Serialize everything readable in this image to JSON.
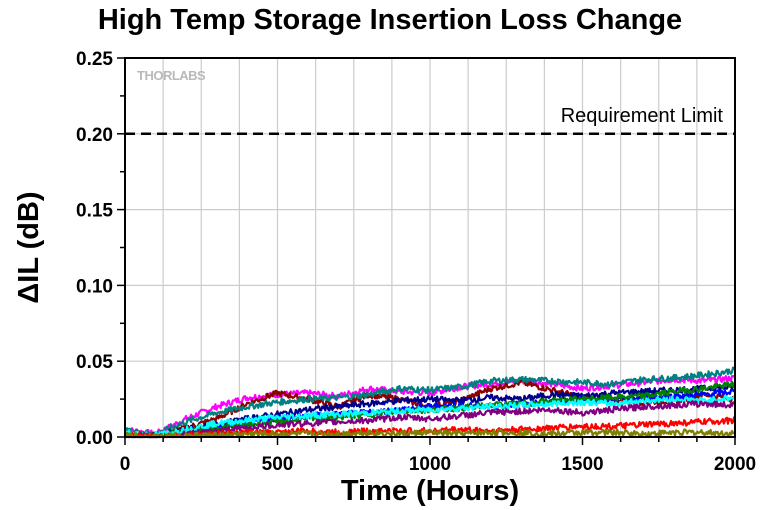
{
  "chart_data": {
    "type": "line",
    "title": "High Temp Storage Insertion Loss Change",
    "xlabel": "Time (Hours)",
    "ylabel": "ΔIL (dB)",
    "xlim": [
      0,
      2000
    ],
    "ylim": [
      0,
      0.25
    ],
    "xticks": [
      "0",
      "500",
      "1000",
      "1500",
      "2000"
    ],
    "yticks": [
      "0.00",
      "0.05",
      "0.10",
      "0.15",
      "0.20",
      "0.25"
    ],
    "grid": true,
    "legend": "none",
    "watermark": "THORLABS",
    "annotations": [
      {
        "text": "Requirement Limit",
        "type": "hline",
        "y": 0.2,
        "style": "dashed",
        "color": "#000000"
      }
    ],
    "x": [
      0,
      100,
      200,
      300,
      400,
      500,
      600,
      700,
      800,
      900,
      1000,
      1100,
      1200,
      1300,
      1400,
      1500,
      1600,
      1700,
      1800,
      1900,
      2000
    ],
    "series": [
      {
        "color": "#ff00ff",
        "values": [
          0.005,
          0.002,
          0.012,
          0.02,
          0.026,
          0.028,
          0.029,
          0.027,
          0.032,
          0.03,
          0.029,
          0.033,
          0.035,
          0.037,
          0.035,
          0.032,
          0.034,
          0.036,
          0.038,
          0.037,
          0.039
        ]
      },
      {
        "color": "#8b0000",
        "values": [
          0.003,
          0.001,
          0.006,
          0.012,
          0.022,
          0.029,
          0.025,
          0.02,
          0.028,
          0.025,
          0.02,
          0.024,
          0.032,
          0.036,
          0.031,
          0.026,
          0.025,
          0.023,
          0.024,
          0.028,
          0.025
        ]
      },
      {
        "color": "#008080",
        "values": [
          0.004,
          0.002,
          0.01,
          0.016,
          0.02,
          0.023,
          0.025,
          0.026,
          0.028,
          0.032,
          0.031,
          0.033,
          0.037,
          0.038,
          0.037,
          0.036,
          0.035,
          0.038,
          0.039,
          0.041,
          0.044
        ]
      },
      {
        "color": "#00008b",
        "values": [
          0.002,
          0.001,
          0.005,
          0.008,
          0.012,
          0.015,
          0.018,
          0.02,
          0.022,
          0.024,
          0.025,
          0.024,
          0.026,
          0.025,
          0.028,
          0.027,
          0.029,
          0.03,
          0.031,
          0.032,
          0.033
        ]
      },
      {
        "color": "#0000ff",
        "values": [
          0.001,
          0.0,
          0.003,
          0.006,
          0.009,
          0.012,
          0.014,
          0.015,
          0.016,
          0.018,
          0.02,
          0.021,
          0.02,
          0.022,
          0.023,
          0.025,
          0.024,
          0.026,
          0.027,
          0.028,
          0.03
        ]
      },
      {
        "color": "#008000",
        "values": [
          0.002,
          0.001,
          0.004,
          0.006,
          0.008,
          0.01,
          0.012,
          0.013,
          0.015,
          0.017,
          0.018,
          0.019,
          0.021,
          0.022,
          0.024,
          0.025,
          0.026,
          0.027,
          0.03,
          0.032,
          0.035
        ]
      },
      {
        "color": "#00ffff",
        "values": [
          0.003,
          0.001,
          0.005,
          0.009,
          0.011,
          0.013,
          0.014,
          0.015,
          0.016,
          0.017,
          0.018,
          0.019,
          0.02,
          0.021,
          0.022,
          0.023,
          0.022,
          0.024,
          0.025,
          0.024,
          0.026
        ]
      },
      {
        "color": "#800080",
        "values": [
          0.001,
          0.0,
          0.002,
          0.004,
          0.006,
          0.008,
          0.009,
          0.01,
          0.011,
          0.013,
          0.012,
          0.014,
          0.016,
          0.017,
          0.018,
          0.016,
          0.018,
          0.02,
          0.021,
          0.022,
          0.021
        ]
      },
      {
        "color": "#ff0000",
        "values": [
          0.001,
          0.0,
          0.001,
          0.002,
          0.003,
          0.003,
          0.004,
          0.003,
          0.004,
          0.004,
          0.004,
          0.005,
          0.004,
          0.005,
          0.006,
          0.007,
          0.007,
          0.008,
          0.009,
          0.01,
          0.011
        ]
      },
      {
        "color": "#808000",
        "values": [
          0.001,
          0.0,
          0.001,
          0.001,
          0.002,
          0.002,
          0.002,
          0.002,
          0.003,
          0.002,
          0.003,
          0.002,
          0.003,
          0.003,
          0.002,
          0.003,
          0.003,
          0.002,
          0.003,
          0.003,
          0.002
        ]
      }
    ]
  }
}
